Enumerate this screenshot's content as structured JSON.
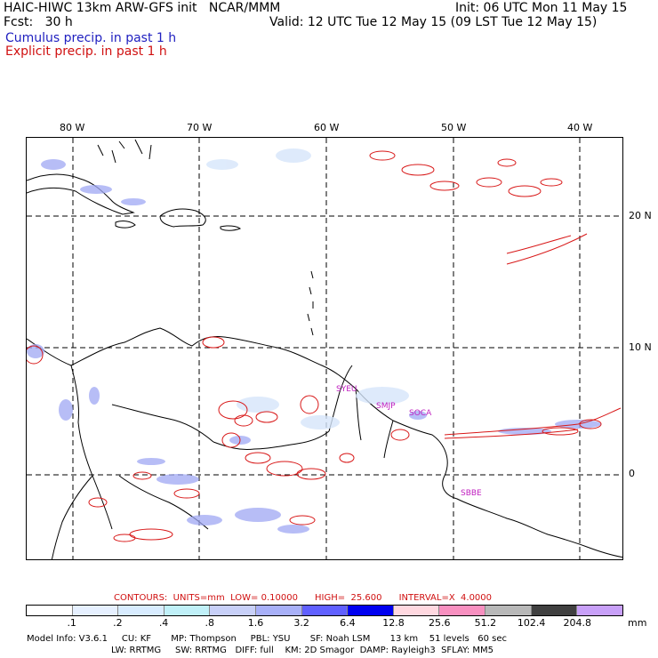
{
  "header": {
    "title": "HAIC-HIWC 13km ARW-GFS init   NCAR/MMM",
    "fcst": "Fcst:   30 h",
    "init": "Init: 06 UTC Mon 11 May 15",
    "valid": "Valid: 12 UTC Tue 12 May 15 (09 LST Tue 12 May 15)",
    "cumulus": "Cumulus precip. in past 1 h",
    "explicit": "Explicit precip. in past 1 h"
  },
  "map": {
    "lon_labels": [
      "80 W",
      "70 W",
      "60 W",
      "50 W",
      "40 W"
    ],
    "lat_labels": [
      "20 N",
      "10 N",
      "0"
    ],
    "stations": [
      "SYEU",
      "SMJP",
      "SOCA",
      "SBBE"
    ]
  },
  "contours": "CONTOURS:  UNITS=mm  LOW= 0.10000      HIGH=  25.600      INTERVAL=X  4.0000",
  "legend": {
    "labels": [
      ".1",
      ".2",
      ".4",
      ".8",
      "1.6",
      "3.2",
      "6.4",
      "12.8",
      "25.6",
      "51.2",
      "102.4",
      "204.8"
    ],
    "colors": [
      "#ffffff",
      "#e6f0ff",
      "#d8ecff",
      "#c0f0f8",
      "#c8d0f8",
      "#a8b0f8",
      "#6060ff",
      "#0000f0",
      "#ffd8e0",
      "#f890c0",
      "#b8b8b8",
      "#404040",
      "#c8a0f8"
    ],
    "units": "mm"
  },
  "model_info": {
    "line1": "Model Info: V3.6.1     CU: KF       MP: Thompson     PBL: YSU       SF: Noah LSM       13 km    51 levels   60 sec",
    "line2": "LW: RRTMG     SW: RRTMG   DIFF: full    KM: 2D Smagor  DAMP: Rayleigh3  SFLAY: MM5"
  }
}
